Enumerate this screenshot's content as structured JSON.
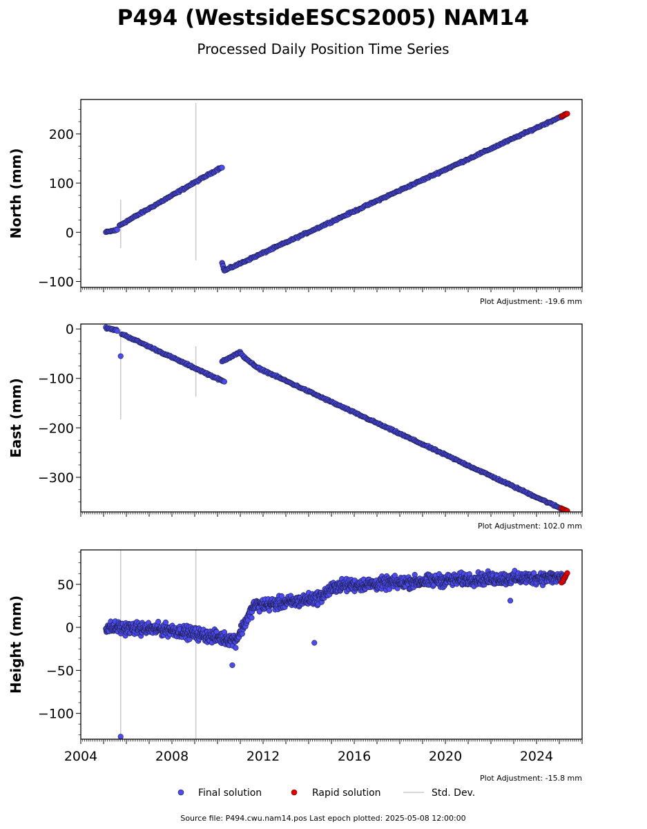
{
  "title": "P494 (WestsideESCS2005) NAM14",
  "subtitle": "Processed Daily Position Time Series",
  "source": "Source file: P494.cwu.nam14.pos  Last epoch plotted: 2025-05-08 12:00:00",
  "legend": {
    "final": "Final solution",
    "rapid": "Rapid solution",
    "stddev": "Std. Dev."
  },
  "colors": {
    "final": "#4b4bf0",
    "rapid": "#e00000",
    "stddev": "#cccccc",
    "edge": "#1a1a3a"
  },
  "chart_data": [
    {
      "type": "scatter",
      "name": "north",
      "ylabel": "North (mm)",
      "adjustment": "Plot Adjustment: -19.6 mm",
      "xlim": [
        2004,
        2026
      ],
      "ylim": [
        -112,
        270
      ],
      "yticks": [
        -100,
        0,
        100,
        200
      ],
      "y_tick_labels": [
        "−100",
        "0",
        "100",
        "200"
      ],
      "segments": [
        {
          "x": [
            2005.1,
            2005.6
          ],
          "y": [
            0,
            5
          ]
        },
        {
          "x": [
            2005.7,
            2010.2
          ],
          "y": [
            14,
            133
          ]
        },
        {
          "x": [
            2010.2,
            2010.3
          ],
          "y": [
            -62,
            -78
          ]
        },
        {
          "x": [
            2010.3,
            2025.3
          ],
          "y": [
            -78,
            240
          ]
        }
      ],
      "stddev_spikes": [
        {
          "x": 2005.75,
          "y0": -32,
          "y1": 66
        },
        {
          "x": 2009.05,
          "y0": -57,
          "y1": 263
        }
      ],
      "rapid": {
        "x": [
          2025.1,
          2025.35
        ],
        "y": [
          236,
          241
        ]
      }
    },
    {
      "type": "scatter",
      "name": "east",
      "ylabel": "East (mm)",
      "adjustment": "Plot Adjustment: 102.0 mm",
      "xlim": [
        2004,
        2026
      ],
      "ylim": [
        -370,
        10
      ],
      "yticks": [
        -300,
        -200,
        -100,
        0
      ],
      "y_tick_labels": [
        "−300",
        "−200",
        "−100",
        "0"
      ],
      "segments": [
        {
          "x": [
            2005.1,
            2005.6
          ],
          "y": [
            2,
            -3
          ]
        },
        {
          "x": [
            2005.8,
            2010.3
          ],
          "y": [
            -10,
            -107
          ]
        },
        {
          "x": [
            2010.2,
            2011.0
          ],
          "y": [
            -65,
            -47
          ]
        },
        {
          "x": [
            2011.0,
            2011.6
          ],
          "y": [
            -50,
            -73
          ]
        },
        {
          "x": [
            2011.6,
            2025.3
          ],
          "y": [
            -75,
            -368
          ]
        }
      ],
      "stddev_spikes": [
        {
          "x": 2005.75,
          "y0": -183,
          "y1": 0
        },
        {
          "x": 2009.05,
          "y0": -137,
          "y1": -35
        }
      ],
      "outliers": [
        {
          "x": 2005.75,
          "y": -55
        }
      ],
      "rapid": {
        "x": [
          2025.1,
          2025.35
        ],
        "y": [
          -363,
          -368
        ]
      }
    },
    {
      "type": "scatter",
      "name": "height",
      "ylabel": "Height (mm)",
      "adjustment": "Plot Adjustment: -15.8 mm",
      "xlim": [
        2004,
        2026
      ],
      "ylim": [
        -130,
        90
      ],
      "yticks": [
        -100,
        -50,
        0,
        50
      ],
      "y_tick_labels": [
        "−100",
        "−50",
        "0",
        "50"
      ],
      "x_tick_labels": [
        "2004",
        "2008",
        "2012",
        "2016",
        "2020",
        "2024"
      ],
      "xticks": [
        2004,
        2008,
        2012,
        2016,
        2020,
        2024
      ],
      "trend": [
        {
          "x": 2005.1,
          "y": 0
        },
        {
          "x": 2008.0,
          "y": -3
        },
        {
          "x": 2010.8,
          "y": -15
        },
        {
          "x": 2011.6,
          "y": 25
        },
        {
          "x": 2013.5,
          "y": 30
        },
        {
          "x": 2014.5,
          "y": 35
        },
        {
          "x": 2015.2,
          "y": 48
        },
        {
          "x": 2018.0,
          "y": 52
        },
        {
          "x": 2021.0,
          "y": 56
        },
        {
          "x": 2025.3,
          "y": 58
        }
      ],
      "stddev_spikes": [
        {
          "x": 2005.75,
          "y0": -130,
          "y1": 90
        },
        {
          "x": 2009.05,
          "y0": -130,
          "y1": 90
        }
      ],
      "outliers": [
        {
          "x": 2005.75,
          "y": -127
        },
        {
          "x": 2014.25,
          "y": -18
        },
        {
          "x": 2010.65,
          "y": -44
        },
        {
          "x": 2022.85,
          "y": 31
        }
      ],
      "rapid": {
        "x": [
          2025.1,
          2025.35
        ],
        "y": [
          52,
          63
        ]
      }
    }
  ]
}
